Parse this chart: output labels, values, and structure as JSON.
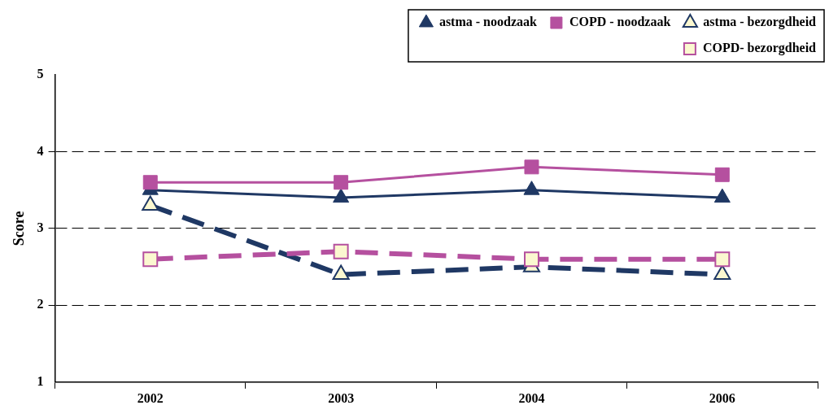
{
  "chart_data": {
    "type": "line",
    "ylabel": "Score",
    "categories": [
      "2002",
      "2003",
      "2004",
      "2006"
    ],
    "series": [
      {
        "name": "astma - noodzaak",
        "color": "#1f3864",
        "values": [
          3.5,
          3.4,
          3.5,
          3.4
        ],
        "marker": "triangle",
        "line_style": "solid"
      },
      {
        "name": "COPD - noodzaak",
        "color": "#b5509f",
        "values": [
          3.6,
          3.6,
          3.8,
          3.7
        ],
        "marker": "square",
        "line_style": "solid"
      },
      {
        "name": "astma - bezorgdheid",
        "color": "#1f3864",
        "values": [
          3.3,
          2.4,
          2.5,
          2.4
        ],
        "marker": "triangle",
        "line_style": "dashed"
      },
      {
        "name": "COPD- bezorgdheid",
        "color": "#b5509f",
        "values": [
          2.6,
          2.7,
          2.6,
          2.6
        ],
        "marker": "square",
        "line_style": "dashed"
      }
    ],
    "ylim": [
      1,
      5
    ],
    "yticks": [
      1,
      2,
      3,
      4,
      5
    ],
    "grid": "y",
    "legend": "top right"
  }
}
